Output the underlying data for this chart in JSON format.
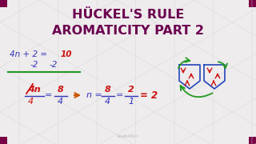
{
  "bg_color": "#eeecec",
  "hex_color": "#d8d5d5",
  "title_line1": "HÜCKEL'S RULE",
  "title_line2": "AROMATICITY PART 2",
  "title_color": "#6b0050",
  "title_fontsize": 11.5,
  "watermark": "leah4Sci",
  "watermark_color": "#b0a8a8",
  "corner_color": "#7a0045"
}
